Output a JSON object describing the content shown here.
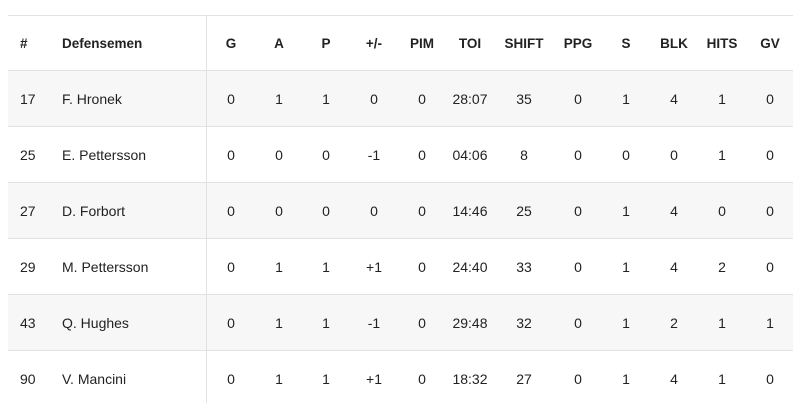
{
  "table": {
    "headers": [
      "#",
      "Defensemen",
      "G",
      "A",
      "P",
      "+/-",
      "PIM",
      "TOI",
      "SHIFT",
      "PPG",
      "S",
      "BLK",
      "HITS",
      "GV"
    ],
    "rows": [
      [
        "17",
        "F. Hronek",
        "0",
        "1",
        "1",
        "0",
        "0",
        "28:07",
        "35",
        "0",
        "1",
        "4",
        "1",
        "0"
      ],
      [
        "25",
        "E. Pettersson",
        "0",
        "0",
        "0",
        "-1",
        "0",
        "04:06",
        "8",
        "0",
        "0",
        "0",
        "1",
        "0"
      ],
      [
        "27",
        "D. Forbort",
        "0",
        "0",
        "0",
        "0",
        "0",
        "14:46",
        "25",
        "0",
        "1",
        "4",
        "0",
        "0"
      ],
      [
        "29",
        "M. Pettersson",
        "0",
        "1",
        "1",
        "+1",
        "0",
        "24:40",
        "33",
        "0",
        "1",
        "4",
        "2",
        "0"
      ],
      [
        "43",
        "Q. Hughes",
        "0",
        "1",
        "1",
        "-1",
        "0",
        "29:48",
        "32",
        "0",
        "1",
        "2",
        "1",
        "1"
      ],
      [
        "90",
        "V. Mancini",
        "0",
        "1",
        "1",
        "+1",
        "0",
        "18:32",
        "27",
        "0",
        "1",
        "4",
        "1",
        "0"
      ]
    ]
  }
}
